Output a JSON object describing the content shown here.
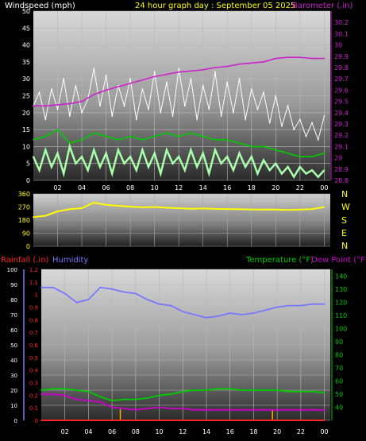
{
  "header": {
    "windspeed_label": "Windspeed (mph)",
    "title": "24 hour graph day : September 05 2025",
    "barometer_label": "Barometer (.in)"
  },
  "lower_header": {
    "rainfall_label": "Rainfall (.in)",
    "humidity_label": "Humidity",
    "temperature_label": "Temperature (°F)",
    "dewpoint_label": "Dew Point (°F)"
  },
  "direction_letters": [
    "N",
    "W",
    "S",
    "E",
    "N"
  ],
  "colors": {
    "windspeed": "#ffffff",
    "barometer": "#cc22cc",
    "gust": "#ffffff",
    "average": "#00cc00",
    "light": "#aaffaa",
    "direction": "#ffff00",
    "rainfall": "#ff2222",
    "humidity": "#7777ff",
    "temperature": "#00cc00",
    "dewpoint": "#cc00cc",
    "title": "#ffff00"
  },
  "chart_data": [
    {
      "type": "line",
      "name": "wind_and_barometer",
      "x_ticks": [
        "02",
        "04",
        "06",
        "08",
        "10",
        "12",
        "14",
        "16",
        "18",
        "20",
        "22",
        "00"
      ],
      "x_hours": [
        2,
        4,
        6,
        8,
        10,
        12,
        14,
        16,
        18,
        20,
        22,
        24
      ],
      "xlim": [
        0,
        24.5
      ],
      "grid": true,
      "y_left": {
        "label": "Windspeed (mph)",
        "ylim": [
          0,
          50
        ],
        "ticks": [
          "0",
          "5",
          "10",
          "15",
          "20",
          "25",
          "30",
          "35",
          "40",
          "45",
          "50"
        ]
      },
      "y_right": {
        "label": "Barometer (.in)",
        "ylim": [
          28.8,
          30.3
        ],
        "ticks": [
          "28.8",
          "28.9",
          "29",
          "29.1",
          "29.2",
          "29.3",
          "29.4",
          "29.5",
          "29.6",
          "29.7",
          "29.8",
          "29.9",
          "30",
          "30.1",
          "30.2"
        ]
      },
      "series": [
        {
          "key": "gust",
          "x": [
            0,
            0.5,
            1,
            1.5,
            2,
            2.5,
            3,
            3.5,
            4,
            4.5,
            5,
            5.5,
            6,
            6.5,
            7,
            7.5,
            8,
            8.5,
            9,
            9.5,
            10,
            10.5,
            11,
            11.5,
            12,
            12.5,
            13,
            13.5,
            14,
            14.5,
            15,
            15.5,
            16,
            16.5,
            17,
            17.5,
            18,
            18.5,
            19,
            19.5,
            20,
            20.5,
            21,
            21.5,
            22,
            22.5,
            23,
            23.5,
            24
          ],
          "values": [
            22,
            26,
            18,
            27,
            21,
            30,
            19,
            28,
            20,
            24,
            33,
            22,
            31,
            19,
            28,
            22,
            30,
            18,
            27,
            21,
            32,
            20,
            29,
            19,
            33,
            22,
            30,
            18,
            28,
            21,
            32,
            19,
            29,
            20,
            30,
            18,
            27,
            21,
            26,
            17,
            25,
            16,
            22,
            15,
            18,
            13,
            17,
            12,
            19
          ]
        },
        {
          "key": "average",
          "x": [
            0,
            1,
            2,
            3,
            4,
            5,
            6,
            7,
            8,
            9,
            10,
            11,
            12,
            13,
            14,
            15,
            16,
            17,
            18,
            19,
            20,
            21,
            22,
            23,
            24
          ],
          "values": [
            12,
            13,
            15,
            11,
            12,
            14,
            13,
            12,
            13,
            12,
            13,
            14,
            13,
            14,
            13,
            12,
            12,
            11,
            10,
            10,
            9,
            8,
            7,
            7,
            8
          ]
        },
        {
          "key": "light",
          "x": [
            0,
            0.5,
            1,
            1.5,
            2,
            2.5,
            3,
            3.5,
            4,
            4.5,
            5,
            5.5,
            6,
            6.5,
            7,
            7.5,
            8,
            8.5,
            9,
            9.5,
            10,
            10.5,
            11,
            11.5,
            12,
            12.5,
            13,
            13.5,
            14,
            14.5,
            15,
            15.5,
            16,
            16.5,
            17,
            17.5,
            18,
            18.5,
            19,
            19.5,
            20,
            20.5,
            21,
            21.5,
            22,
            22.5,
            23,
            23.5,
            24
          ],
          "values": [
            7,
            3,
            9,
            4,
            8,
            2,
            10,
            5,
            7,
            3,
            9,
            4,
            8,
            2,
            9,
            5,
            7,
            3,
            9,
            4,
            8,
            2,
            9,
            5,
            7,
            3,
            9,
            4,
            8,
            2,
            9,
            5,
            7,
            3,
            8,
            4,
            7,
            2,
            6,
            3,
            5,
            2,
            4,
            1,
            4,
            2,
            3,
            1,
            3
          ]
        },
        {
          "key": "barometer",
          "axis": "right",
          "x": [
            0,
            1,
            2,
            3,
            4,
            5,
            6,
            7,
            8,
            9,
            10,
            11,
            12,
            13,
            14,
            15,
            16,
            17,
            18,
            19,
            20,
            21,
            22,
            23,
            24
          ],
          "values": [
            29.46,
            29.46,
            29.47,
            29.48,
            29.5,
            29.56,
            29.6,
            29.63,
            29.66,
            29.69,
            29.72,
            29.74,
            29.76,
            29.77,
            29.78,
            29.8,
            29.81,
            29.83,
            29.84,
            29.85,
            29.88,
            29.89,
            29.89,
            29.88,
            29.88
          ]
        }
      ]
    },
    {
      "type": "line",
      "name": "wind_direction",
      "xlim": [
        0,
        24.5
      ],
      "ylim": [
        0,
        360
      ],
      "y_ticks": [
        "0",
        "90",
        "180",
        "270",
        "360"
      ],
      "grid": true,
      "series": [
        {
          "key": "direction",
          "x": [
            0,
            1,
            2,
            3,
            4,
            5,
            6,
            7,
            8,
            9,
            10,
            11,
            12,
            13,
            14,
            15,
            16,
            17,
            18,
            19,
            20,
            21,
            22,
            23,
            24
          ],
          "values": [
            200,
            210,
            240,
            255,
            262,
            300,
            285,
            278,
            272,
            268,
            270,
            265,
            262,
            258,
            260,
            257,
            256,
            255,
            253,
            252,
            252,
            250,
            252,
            256,
            270
          ]
        }
      ]
    },
    {
      "type": "line",
      "name": "humidity_temperature_rain",
      "x_ticks": [
        "02",
        "04",
        "06",
        "08",
        "10",
        "12",
        "14",
        "16",
        "18",
        "20",
        "22",
        "00"
      ],
      "x_hours": [
        2,
        4,
        6,
        8,
        10,
        12,
        14,
        16,
        18,
        20,
        22,
        24
      ],
      "xlim": [
        0,
        24.5
      ],
      "grid": true,
      "y_humidity": {
        "ylim": [
          0,
          100
        ],
        "ticks": [
          "0",
          "10",
          "20",
          "30",
          "40",
          "50",
          "60",
          "70",
          "80",
          "90",
          "100"
        ]
      },
      "y_rain": {
        "ylim": [
          0,
          1.2
        ],
        "ticks": [
          "0",
          "0.1",
          "0.2",
          "0.3",
          "0.4",
          "0.5",
          "0.6",
          "0.7",
          "0.8",
          "0.9",
          "1",
          "1.1",
          "1.2"
        ]
      },
      "y_temperature": {
        "ylim": [
          30,
          145
        ],
        "ticks": [
          "40",
          "50",
          "60",
          "70",
          "80",
          "90",
          "100",
          "110",
          "120",
          "130",
          "140"
        ]
      },
      "series": [
        {
          "key": "humidity",
          "axis": "humidity",
          "x": [
            0,
            1,
            2,
            3,
            4,
            5,
            6,
            7,
            8,
            9,
            10,
            11,
            12,
            13,
            14,
            15,
            16,
            17,
            18,
            19,
            20,
            21,
            22,
            23,
            24
          ],
          "values": [
            88,
            88,
            84,
            78,
            80,
            88,
            87,
            85,
            84,
            80,
            77,
            76,
            72,
            70,
            68,
            69,
            71,
            70,
            71,
            73,
            75,
            76,
            76,
            77,
            77
          ]
        },
        {
          "key": "temperature",
          "axis": "temperature",
          "x": [
            0,
            1,
            2,
            3,
            4,
            5,
            6,
            7,
            8,
            9,
            10,
            11,
            12,
            13,
            14,
            15,
            16,
            17,
            18,
            19,
            20,
            21,
            22,
            23,
            24
          ],
          "values": [
            53,
            54,
            54,
            53,
            52,
            48,
            45,
            46,
            46,
            47,
            49,
            50,
            52,
            53,
            53,
            54,
            54,
            53,
            53,
            53,
            53,
            52,
            52,
            52,
            51
          ]
        },
        {
          "key": "dewpoint",
          "axis": "temperature",
          "x": [
            0,
            1,
            2,
            3,
            4,
            5,
            6,
            7,
            8,
            9,
            10,
            11,
            12,
            13,
            14,
            15,
            16,
            17,
            18,
            19,
            20,
            21,
            22,
            23,
            24
          ],
          "values": [
            50,
            50,
            49,
            46,
            45,
            44,
            40,
            39,
            38,
            39,
            40,
            39,
            39,
            38,
            38,
            38,
            38,
            38,
            38,
            38,
            38,
            38,
            38,
            38,
            38
          ]
        },
        {
          "key": "rainfall",
          "axis": "rain",
          "x": [
            0,
            24
          ],
          "values": [
            0,
            0
          ]
        }
      ],
      "markers": [
        {
          "x": 6.7
        },
        {
          "x": 19.6
        }
      ]
    }
  ]
}
